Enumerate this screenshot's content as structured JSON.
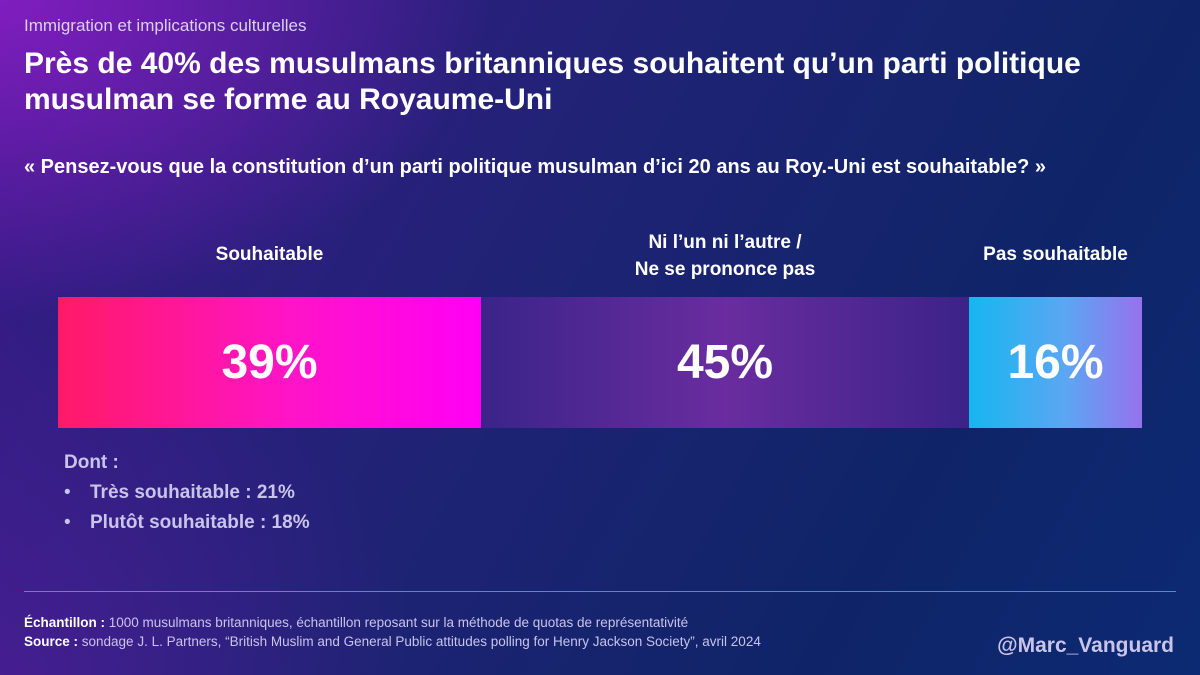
{
  "header": {
    "supertitle": "Immigration et implications culturelles",
    "title": "Près de 40% des musulmans britanniques souhaitent qu’un parti politique musulman se forme au Royaume-Uni",
    "question": "« Pensez-vous que la constitution d’un parti politique musulman d’ici 20 ans au Roy.-Uni est souhaitable? »"
  },
  "chart_data": {
    "type": "bar",
    "orientation": "horizontal-stacked",
    "categories": [
      "Souhaitable",
      "Ni l’un ni l’autre /\nNe se prononce pas",
      "Pas souhaitable"
    ],
    "values": [
      39,
      45,
      16
    ],
    "value_labels": [
      "39%",
      "45%",
      "16%"
    ],
    "unit": "%",
    "colors": [
      "#ff14c8",
      "#5a2a9e",
      "#3fb0f0"
    ]
  },
  "breakdown": {
    "title": "Dont :",
    "items": [
      {
        "bullet": "•",
        "text": "Très souhaitable : 21%",
        "value": 21
      },
      {
        "bullet": "•",
        "text": "Plutôt souhaitable : 18%",
        "value": 18
      }
    ]
  },
  "footer": {
    "sample_label": "Échantillon :",
    "sample_text": " 1000 musulmans britanniques, échantillon reposant sur la méthode de quotas de représentativité",
    "source_label": "Source :",
    "source_text": " sondage J. L. Partners, “British Muslim and General Public attitudes polling for Henry Jackson Society”, avril 2024"
  },
  "handle": "@Marc_Vanguard"
}
